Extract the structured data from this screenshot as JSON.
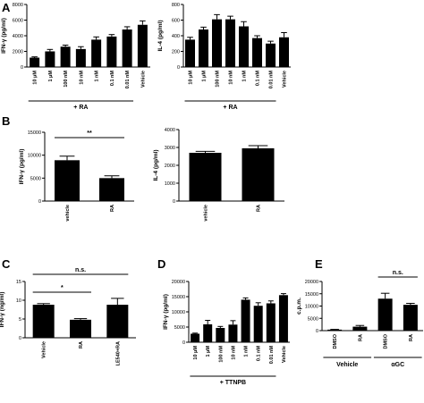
{
  "panel_labels": {
    "A": "A",
    "B": "B",
    "C": "C",
    "D": "D",
    "E": "E"
  },
  "chart_data": [
    {
      "id": "A1",
      "panel": "A",
      "type": "bar",
      "ylabel": "IFN-γ (pg/ml)",
      "ylim": [
        0,
        8000
      ],
      "yticks": [
        0,
        2000,
        4000,
        6000,
        8000
      ],
      "ytick_labels": [
        "0",
        "2000",
        "4000",
        "6000",
        "8000"
      ],
      "categories": [
        "10 μM",
        "1 μM",
        "100 nM",
        "10 nM",
        "1 nM",
        "0.1 nM",
        "0.01 nM",
        "Vehicle"
      ],
      "values": [
        1200,
        2000,
        2600,
        2300,
        3500,
        3900,
        4800,
        5400
      ],
      "errors": [
        100,
        250,
        200,
        300,
        350,
        250,
        350,
        500
      ],
      "group_label": "+ RA",
      "group_span": [
        0,
        6
      ]
    },
    {
      "id": "A2",
      "panel": "A",
      "type": "bar",
      "ylabel": "IL-4 (pg/ml)",
      "ylim": [
        0,
        800
      ],
      "yticks": [
        0,
        200,
        400,
        600,
        800
      ],
      "ytick_labels": [
        "0",
        "200",
        "400",
        "600",
        "800"
      ],
      "categories": [
        "10 μM",
        "1 μM",
        "100 nM",
        "10 nM",
        "1 nM",
        "0.1 nM",
        "0.01 nM",
        "Vehicle"
      ],
      "values": [
        350,
        480,
        610,
        610,
        520,
        370,
        300,
        380
      ],
      "errors": [
        30,
        30,
        60,
        40,
        60,
        30,
        30,
        60
      ],
      "group_label": "+ RA",
      "group_span": [
        0,
        6
      ]
    },
    {
      "id": "B1",
      "panel": "B",
      "type": "bar",
      "ylabel": "IFN-γ (pg/ml)",
      "ylim": [
        0,
        15000
      ],
      "yticks": [
        0,
        5000,
        10000,
        15000
      ],
      "ytick_labels": [
        "0",
        "5000",
        "10000",
        "15000"
      ],
      "categories": [
        "vehicle",
        "RA"
      ],
      "values": [
        8900,
        5000
      ],
      "errors": [
        900,
        500
      ],
      "significance": [
        {
          "from": 0,
          "to": 1,
          "label": "**"
        }
      ]
    },
    {
      "id": "B2",
      "panel": "B",
      "type": "bar",
      "ylabel": "IL-4 (pg/ml)",
      "ylim": [
        0,
        4000
      ],
      "yticks": [
        0,
        1000,
        2000,
        3000,
        4000
      ],
      "ytick_labels": [
        "0",
        "1000",
        "2000",
        "3000",
        "4000"
      ],
      "categories": [
        "vehicle",
        "RA"
      ],
      "values": [
        2700,
        2950
      ],
      "errors": [
        80,
        150
      ]
    },
    {
      "id": "C",
      "panel": "C",
      "type": "bar",
      "ylabel": "IFN-γ (ng/ml)",
      "ylim": [
        0,
        15
      ],
      "yticks": [
        0,
        5,
        10,
        15
      ],
      "ytick_labels": [
        "0",
        "5",
        "10",
        "15"
      ],
      "categories": [
        "Vehicle",
        "RA",
        "LE540+RA"
      ],
      "values": [
        8.8,
        4.8,
        8.8
      ],
      "errors": [
        0.3,
        0.3,
        1.7
      ],
      "significance": [
        {
          "from": 0,
          "to": 1,
          "label": "*"
        },
        {
          "from": 0,
          "to": 2,
          "label": "n.s."
        }
      ]
    },
    {
      "id": "D",
      "panel": "D",
      "type": "bar",
      "ylabel": "IFN-γ (pg/ml)",
      "ylim": [
        0,
        20000
      ],
      "yticks": [
        0,
        5000,
        10000,
        15000,
        20000
      ],
      "ytick_labels": [
        "0",
        "5000",
        "10000",
        "15000",
        "20000"
      ],
      "categories": [
        "10 μM",
        "1 μM",
        "100 nM",
        "10 nM",
        "1 nM",
        "0.1 nM",
        "0.01 nM",
        "Vehicle"
      ],
      "values": [
        2800,
        5900,
        4700,
        5800,
        14000,
        12000,
        12800,
        15500
      ],
      "errors": [
        200,
        1300,
        500,
        1300,
        600,
        1000,
        800,
        500
      ],
      "group_label": "+ TTNPB",
      "group_span": [
        0,
        6
      ]
    },
    {
      "id": "E",
      "panel": "E",
      "type": "bar",
      "ylabel": "c.p.m.",
      "ylim": [
        0,
        20000
      ],
      "yticks": [
        0,
        5000,
        10000,
        15000,
        20000
      ],
      "ytick_labels": [
        "0",
        "5000",
        "10000",
        "15000",
        "20000"
      ],
      "categories": [
        "DMSO",
        "RA",
        "DMSO",
        "RA"
      ],
      "values": [
        400,
        1600,
        13000,
        10500
      ],
      "errors": [
        100,
        500,
        2200,
        600
      ],
      "groups": [
        {
          "label": "Vehicle",
          "span": [
            0,
            1
          ]
        },
        {
          "label": "αGC",
          "span": [
            2,
            3
          ]
        }
      ],
      "significance": [
        {
          "from": 2,
          "to": 3,
          "label": "n.s."
        }
      ]
    }
  ]
}
